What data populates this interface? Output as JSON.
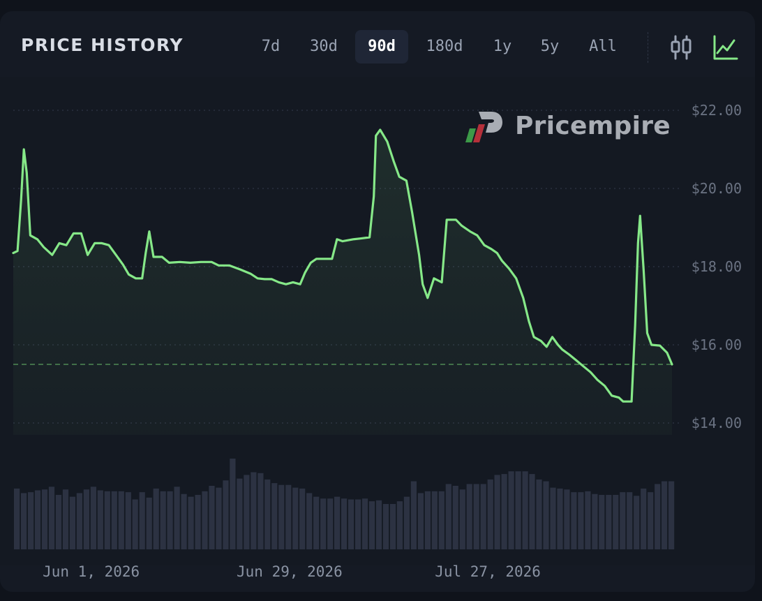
{
  "header": {
    "title": "PRICE HISTORY",
    "ranges": [
      "7d",
      "30d",
      "90d",
      "180d",
      "1y",
      "5y",
      "All"
    ],
    "active_range": "90d",
    "view_icons": [
      "candlestick-icon",
      "line-chart-icon"
    ],
    "active_view": "line-chart-icon"
  },
  "brand": {
    "name": "Pricempire"
  },
  "colors": {
    "line": "#86e888",
    "volume_bar": "#2c3242",
    "current_price_line": "#4f8a55",
    "grid": "#2a3040",
    "logo_green": "#3c9a48",
    "logo_red": "#b5303a"
  },
  "chart_data": {
    "type": "line",
    "title": "",
    "xlabel": "",
    "ylabel": "",
    "ylim": [
      13.75,
      22.25
    ],
    "y_ticks": [
      "$22.00",
      "$20.00",
      "$18.00",
      "$16.00",
      "$14.00"
    ],
    "y_tick_values": [
      22,
      20,
      18,
      16,
      14
    ],
    "x_ticks": [
      {
        "label": "Jun 1, 2026",
        "day": 11
      },
      {
        "label": "Jun 29, 2026",
        "day": 39
      },
      {
        "label": "Jul 27, 2026",
        "day": 67
      }
    ],
    "x_range_days": [
      0,
      93
    ],
    "current_price": 15.5,
    "series": [
      {
        "values": [
          [
            0,
            18.35
          ],
          [
            0.6,
            18.4
          ],
          [
            1.1,
            19.7
          ],
          [
            1.5,
            21.0
          ],
          [
            1.9,
            20.4
          ],
          [
            2.4,
            18.8
          ],
          [
            3.4,
            18.7
          ],
          [
            4.3,
            18.5
          ],
          [
            5.5,
            18.3
          ],
          [
            6.5,
            18.6
          ],
          [
            7.5,
            18.55
          ],
          [
            8.5,
            18.85
          ],
          [
            9.6,
            18.85
          ],
          [
            10.5,
            18.3
          ],
          [
            11.5,
            18.6
          ],
          [
            12.5,
            18.6
          ],
          [
            13.5,
            18.55
          ],
          [
            14.5,
            18.3
          ],
          [
            15.5,
            18.05
          ],
          [
            16.3,
            17.8
          ],
          [
            17.3,
            17.7
          ],
          [
            18.2,
            17.7
          ],
          [
            18.7,
            18.35
          ],
          [
            19.2,
            18.9
          ],
          [
            19.8,
            18.25
          ],
          [
            21,
            18.25
          ],
          [
            22,
            18.1
          ],
          [
            23.5,
            18.12
          ],
          [
            25,
            18.1
          ],
          [
            26.5,
            18.12
          ],
          [
            28,
            18.12
          ],
          [
            29,
            18.03
          ],
          [
            30.5,
            18.03
          ],
          [
            32,
            17.93
          ],
          [
            33.5,
            17.82
          ],
          [
            34.5,
            17.7
          ],
          [
            35.5,
            17.68
          ],
          [
            36.5,
            17.68
          ],
          [
            37.5,
            17.6
          ],
          [
            38.5,
            17.55
          ],
          [
            39.5,
            17.6
          ],
          [
            40.5,
            17.55
          ],
          [
            41.2,
            17.85
          ],
          [
            42,
            18.1
          ],
          [
            42.8,
            18.2
          ],
          [
            44,
            18.2
          ],
          [
            45,
            18.2
          ],
          [
            45.7,
            18.7
          ],
          [
            46.5,
            18.65
          ],
          [
            48,
            18.7
          ],
          [
            49,
            18.72
          ],
          [
            50.3,
            18.75
          ],
          [
            50.9,
            19.8
          ],
          [
            51.2,
            21.35
          ],
          [
            51.8,
            21.5
          ],
          [
            52.8,
            21.2
          ],
          [
            53.7,
            20.7
          ],
          [
            54.5,
            20.3
          ],
          [
            55.5,
            20.2
          ],
          [
            56.3,
            19.4
          ],
          [
            57.3,
            18.3
          ],
          [
            57.8,
            17.55
          ],
          [
            58.5,
            17.2
          ],
          [
            59.4,
            17.7
          ],
          [
            60.5,
            17.6
          ],
          [
            61.2,
            19.2
          ],
          [
            62.5,
            19.2
          ],
          [
            63.3,
            19.05
          ],
          [
            64.5,
            18.9
          ],
          [
            65.5,
            18.8
          ],
          [
            66.5,
            18.55
          ],
          [
            67.5,
            18.45
          ],
          [
            68.3,
            18.35
          ],
          [
            69,
            18.15
          ],
          [
            70,
            17.95
          ],
          [
            71,
            17.7
          ],
          [
            72,
            17.2
          ],
          [
            72.8,
            16.6
          ],
          [
            73.5,
            16.2
          ],
          [
            74.5,
            16.1
          ],
          [
            75.3,
            15.95
          ],
          [
            76.1,
            16.2
          ],
          [
            76.9,
            16.0
          ],
          [
            77.5,
            15.88
          ],
          [
            78.5,
            15.75
          ],
          [
            79.5,
            15.6
          ],
          [
            80.5,
            15.45
          ],
          [
            81.5,
            15.3
          ],
          [
            82.5,
            15.1
          ],
          [
            83.5,
            14.95
          ],
          [
            84.5,
            14.7
          ],
          [
            85.5,
            14.65
          ],
          [
            86.1,
            14.55
          ],
          [
            87.3,
            14.55
          ],
          [
            87.8,
            16.5
          ],
          [
            88.2,
            18.6
          ],
          [
            88.5,
            19.3
          ],
          [
            89,
            17.9
          ],
          [
            89.5,
            16.3
          ],
          [
            90.1,
            16.0
          ],
          [
            91.3,
            15.98
          ],
          [
            92.3,
            15.8
          ],
          [
            93,
            15.5
          ]
        ]
      }
    ],
    "volume": [
      0.67,
      0.62,
      0.63,
      0.65,
      0.66,
      0.69,
      0.6,
      0.66,
      0.58,
      0.62,
      0.66,
      0.69,
      0.65,
      0.64,
      0.64,
      0.64,
      0.63,
      0.55,
      0.63,
      0.57,
      0.67,
      0.64,
      0.64,
      0.69,
      0.61,
      0.58,
      0.6,
      0.64,
      0.7,
      0.68,
      0.76,
      1.0,
      0.78,
      0.82,
      0.85,
      0.84,
      0.77,
      0.73,
      0.71,
      0.71,
      0.68,
      0.67,
      0.62,
      0.58,
      0.56,
      0.56,
      0.58,
      0.56,
      0.55,
      0.55,
      0.56,
      0.53,
      0.54,
      0.5,
      0.5,
      0.53,
      0.58,
      0.75,
      0.62,
      0.64,
      0.64,
      0.64,
      0.72,
      0.7,
      0.66,
      0.72,
      0.72,
      0.72,
      0.77,
      0.82,
      0.83,
      0.86,
      0.86,
      0.86,
      0.83,
      0.77,
      0.75,
      0.68,
      0.67,
      0.66,
      0.63,
      0.63,
      0.64,
      0.61,
      0.6,
      0.6,
      0.6,
      0.63,
      0.63,
      0.59,
      0.67,
      0.63,
      0.72,
      0.75,
      0.75
    ]
  }
}
